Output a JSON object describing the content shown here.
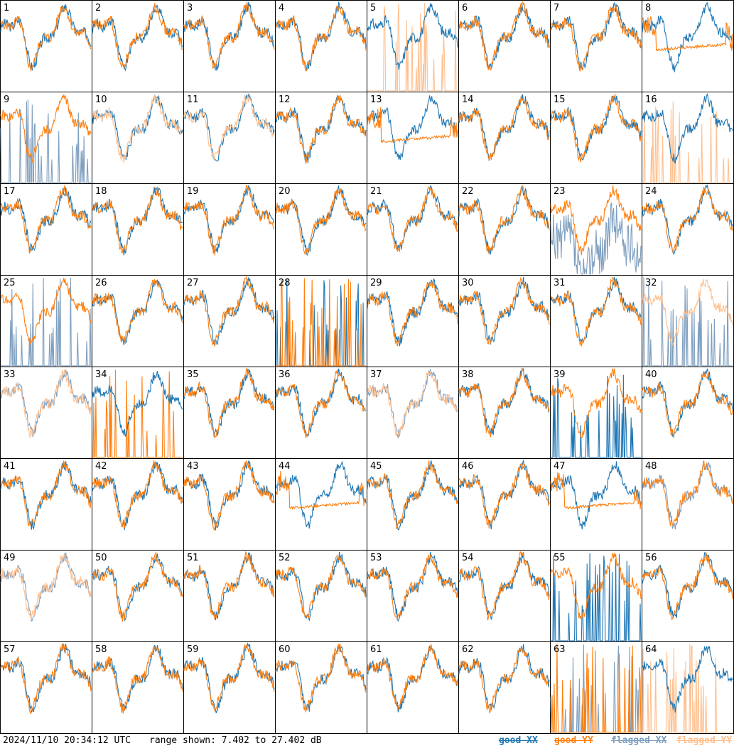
{
  "footer": {
    "timestamp": "2024/11/10 20:34:12 UTC",
    "range_text": "range shown: 7.402 to 27.402 dB"
  },
  "legend": {
    "good_xx": "good XX",
    "good_yy": "good YY",
    "flagged_xx": "flagged XX",
    "flagged_yy": "flagged YY"
  },
  "colors": {
    "good_xx": "#1f77b4",
    "good_yy": "#ff7f0e",
    "flagged_xx": "#7f9fbf",
    "flagged_yy": "#ffc08f",
    "border": "#000000"
  },
  "chart_data": {
    "type": "line",
    "y_units": "dB",
    "ylim": [
      7.402,
      27.402
    ],
    "grid": {
      "rows": 8,
      "cols": 8
    },
    "panels": [
      {
        "id": "1",
        "xx": "good",
        "yy": "good",
        "pattern": "normal"
      },
      {
        "id": "2",
        "xx": "good",
        "yy": "good",
        "pattern": "normal"
      },
      {
        "id": "3",
        "xx": "good",
        "yy": "good",
        "pattern": "normal"
      },
      {
        "id": "4",
        "xx": "good",
        "yy": "good",
        "pattern": "normal"
      },
      {
        "id": "5",
        "xx": "good",
        "yy": "flagged",
        "pattern": "spiky_yy"
      },
      {
        "id": "6",
        "xx": "good",
        "yy": "good",
        "pattern": "normal"
      },
      {
        "id": "7",
        "xx": "good",
        "yy": "good",
        "pattern": "normal"
      },
      {
        "id": "8",
        "xx": "good",
        "yy": "good",
        "pattern": "flat_yy"
      },
      {
        "id": "9",
        "xx": "flagged",
        "yy": "good",
        "pattern": "spiky_xx"
      },
      {
        "id": "10",
        "xx": "good",
        "yy": "flagged",
        "pattern": "normal"
      },
      {
        "id": "11",
        "xx": "good",
        "yy": "flagged",
        "pattern": "normal"
      },
      {
        "id": "12",
        "xx": "good",
        "yy": "good",
        "pattern": "normal"
      },
      {
        "id": "13",
        "xx": "good",
        "yy": "good",
        "pattern": "flat_yy"
      },
      {
        "id": "14",
        "xx": "good",
        "yy": "good",
        "pattern": "normal"
      },
      {
        "id": "15",
        "xx": "good",
        "yy": "good",
        "pattern": "normal"
      },
      {
        "id": "16",
        "xx": "good",
        "yy": "flagged",
        "pattern": "spiky_yy"
      },
      {
        "id": "17",
        "xx": "good",
        "yy": "good",
        "pattern": "normal"
      },
      {
        "id": "18",
        "xx": "good",
        "yy": "good",
        "pattern": "normal"
      },
      {
        "id": "19",
        "xx": "good",
        "yy": "good",
        "pattern": "normal"
      },
      {
        "id": "20",
        "xx": "good",
        "yy": "good",
        "pattern": "normal"
      },
      {
        "id": "21",
        "xx": "good",
        "yy": "good",
        "pattern": "normal"
      },
      {
        "id": "22",
        "xx": "good",
        "yy": "good",
        "pattern": "normal"
      },
      {
        "id": "23",
        "xx": "flagged",
        "yy": "good",
        "pattern": "noisy_xx"
      },
      {
        "id": "24",
        "xx": "good",
        "yy": "good",
        "pattern": "normal"
      },
      {
        "id": "25",
        "xx": "flagged",
        "yy": "good",
        "pattern": "spiky_xx"
      },
      {
        "id": "26",
        "xx": "good",
        "yy": "good",
        "pattern": "normal"
      },
      {
        "id": "27",
        "xx": "good",
        "yy": "good",
        "pattern": "normal"
      },
      {
        "id": "28",
        "xx": "good",
        "yy": "good",
        "pattern": "spiky_both"
      },
      {
        "id": "29",
        "xx": "good",
        "yy": "good",
        "pattern": "normal"
      },
      {
        "id": "30",
        "xx": "good",
        "yy": "good",
        "pattern": "normal"
      },
      {
        "id": "31",
        "xx": "good",
        "yy": "good",
        "pattern": "normal"
      },
      {
        "id": "32",
        "xx": "flagged",
        "yy": "flagged",
        "pattern": "spiky_xx"
      },
      {
        "id": "33",
        "xx": "flagged",
        "yy": "flagged",
        "pattern": "normal"
      },
      {
        "id": "34",
        "xx": "good",
        "yy": "good",
        "pattern": "spiky_yy"
      },
      {
        "id": "35",
        "xx": "good",
        "yy": "good",
        "pattern": "normal"
      },
      {
        "id": "36",
        "xx": "good",
        "yy": "good",
        "pattern": "normal"
      },
      {
        "id": "37",
        "xx": "flagged",
        "yy": "flagged",
        "pattern": "normal"
      },
      {
        "id": "38",
        "xx": "good",
        "yy": "good",
        "pattern": "normal"
      },
      {
        "id": "39",
        "xx": "good",
        "yy": "good",
        "pattern": "spiky_xx"
      },
      {
        "id": "40",
        "xx": "good",
        "yy": "good",
        "pattern": "normal"
      },
      {
        "id": "41",
        "xx": "good",
        "yy": "good",
        "pattern": "normal"
      },
      {
        "id": "42",
        "xx": "good",
        "yy": "good",
        "pattern": "normal"
      },
      {
        "id": "43",
        "xx": "good",
        "yy": "good",
        "pattern": "normal"
      },
      {
        "id": "44",
        "xx": "good",
        "yy": "good",
        "pattern": "flat_yy"
      },
      {
        "id": "45",
        "xx": "good",
        "yy": "good",
        "pattern": "normal"
      },
      {
        "id": "46",
        "xx": "good",
        "yy": "good",
        "pattern": "normal"
      },
      {
        "id": "47",
        "xx": "good",
        "yy": "good",
        "pattern": "flat_yy"
      },
      {
        "id": "48",
        "xx": "flagged",
        "yy": "good",
        "pattern": "normal"
      },
      {
        "id": "49",
        "xx": "flagged",
        "yy": "flagged",
        "pattern": "normal"
      },
      {
        "id": "50",
        "xx": "good",
        "yy": "good",
        "pattern": "normal"
      },
      {
        "id": "51",
        "xx": "good",
        "yy": "good",
        "pattern": "normal"
      },
      {
        "id": "52",
        "xx": "good",
        "yy": "good",
        "pattern": "normal"
      },
      {
        "id": "53",
        "xx": "good",
        "yy": "good",
        "pattern": "normal"
      },
      {
        "id": "54",
        "xx": "good",
        "yy": "good",
        "pattern": "normal"
      },
      {
        "id": "55",
        "xx": "good",
        "yy": "good",
        "pattern": "spiky_xx"
      },
      {
        "id": "56",
        "xx": "good",
        "yy": "good",
        "pattern": "normal"
      },
      {
        "id": "57",
        "xx": "good",
        "yy": "good",
        "pattern": "normal"
      },
      {
        "id": "58",
        "xx": "good",
        "yy": "good",
        "pattern": "normal"
      },
      {
        "id": "59",
        "xx": "good",
        "yy": "good",
        "pattern": "normal"
      },
      {
        "id": "60",
        "xx": "good",
        "yy": "good",
        "pattern": "normal"
      },
      {
        "id": "61",
        "xx": "good",
        "yy": "good",
        "pattern": "normal"
      },
      {
        "id": "62",
        "xx": "good",
        "yy": "good",
        "pattern": "normal"
      },
      {
        "id": "63",
        "xx": "flagged",
        "yy": "good",
        "pattern": "spiky_both"
      },
      {
        "id": "64",
        "xx": "good",
        "yy": "flagged",
        "pattern": "spiky_yy"
      }
    ]
  }
}
